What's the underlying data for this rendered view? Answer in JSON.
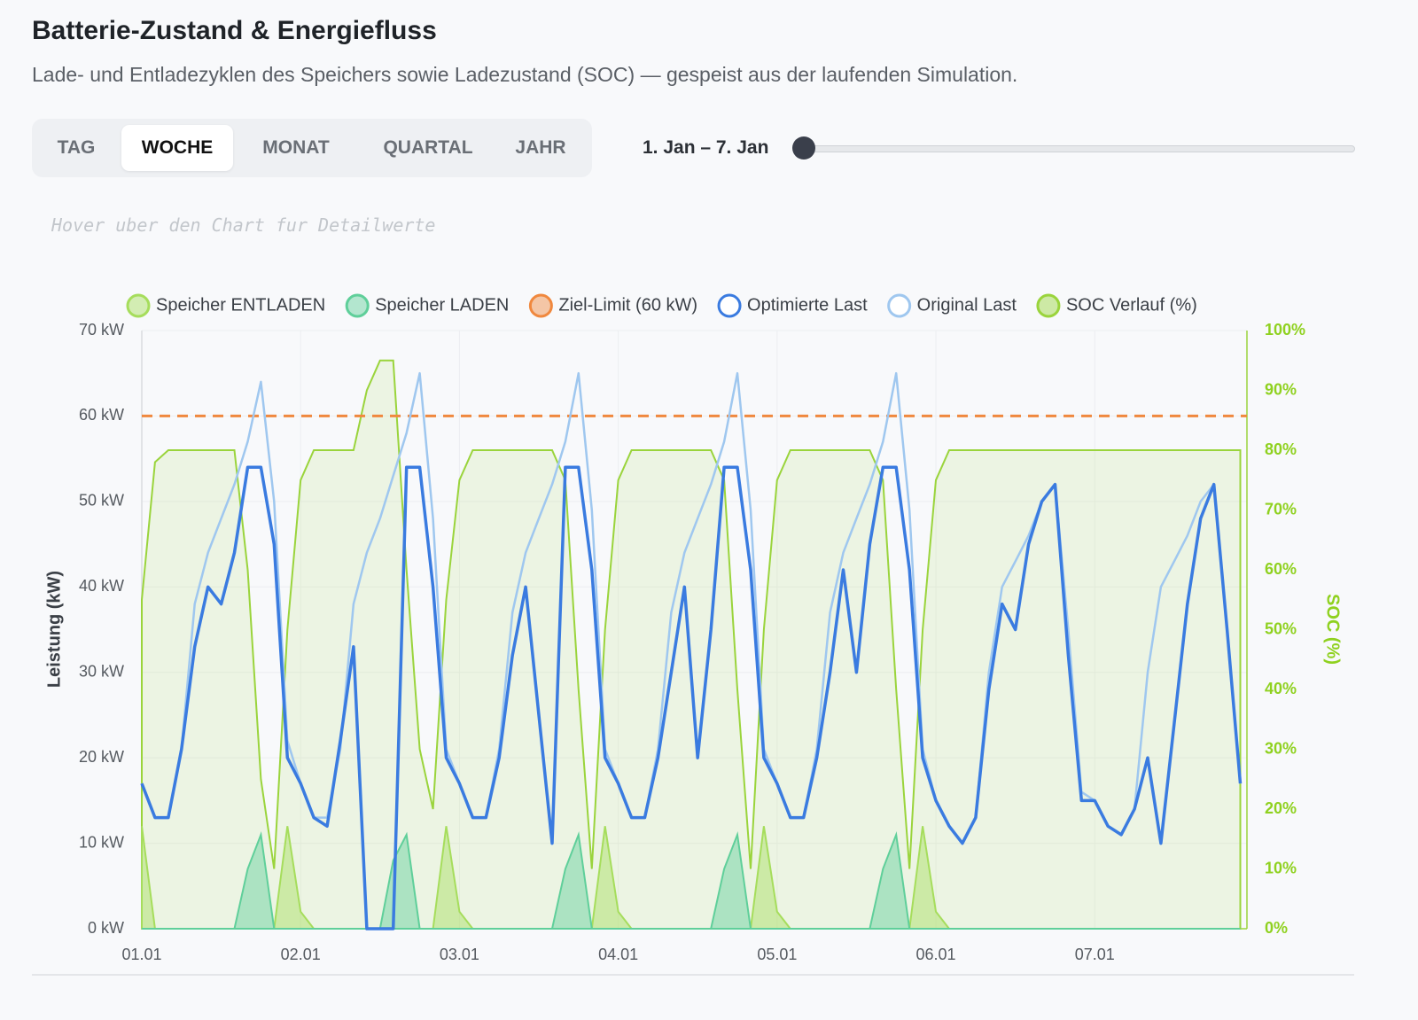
{
  "header": {
    "title": "Batterie-Zustand & Energiefluss",
    "subtitle": "Lade- und Entladezyklen des Speichers sowie Ladezustand (SOC) — gespeist aus der laufenden Simulation.",
    "tabs": [
      "TAG",
      "WOCHE",
      "MONAT",
      "QUARTAL",
      "JAHR"
    ],
    "active_tab": 1,
    "range_label": "1. Jan – 7. Jan",
    "hint": "Hover uber den Chart fur Detailwerte"
  },
  "chart_data": {
    "type": "line",
    "ylabel": "Leistung (kW)",
    "y2label": "SOC (%)",
    "x": [
      0,
      2,
      4,
      6,
      8,
      10,
      12,
      14,
      16,
      18,
      20,
      22,
      24,
      26,
      28,
      30,
      32,
      34,
      36,
      38,
      40,
      42,
      44,
      46,
      48,
      50,
      52,
      54,
      56,
      58,
      60,
      62,
      64,
      66,
      68,
      70,
      72,
      74,
      76,
      78,
      80,
      82,
      84,
      86,
      88,
      90,
      92,
      94,
      96,
      98,
      100,
      102,
      104,
      106,
      108,
      110,
      112,
      114,
      116,
      118,
      120,
      122,
      124,
      126,
      128,
      130,
      132,
      134,
      136,
      138,
      140,
      142,
      144,
      146,
      148,
      150,
      152,
      154,
      156,
      158,
      160,
      162,
      164,
      166
    ],
    "xlim": [
      0,
      167
    ],
    "xticks": [
      {
        "value": 0,
        "label": "01.01"
      },
      {
        "value": 24,
        "label": "02.01"
      },
      {
        "value": 48,
        "label": "03.01"
      },
      {
        "value": 72,
        "label": "04.01"
      },
      {
        "value": 96,
        "label": "05.01"
      },
      {
        "value": 120,
        "label": "06.01"
      },
      {
        "value": 144,
        "label": "07.01"
      }
    ],
    "ylim": [
      0,
      70
    ],
    "yticks": [
      {
        "value": 0,
        "label": "0 kW"
      },
      {
        "value": 10,
        "label": "10 kW"
      },
      {
        "value": 20,
        "label": "20 kW"
      },
      {
        "value": 30,
        "label": "30 kW"
      },
      {
        "value": 40,
        "label": "40 kW"
      },
      {
        "value": 50,
        "label": "50 kW"
      },
      {
        "value": 60,
        "label": "60 kW"
      },
      {
        "value": 70,
        "label": "70 kW"
      }
    ],
    "y2lim": [
      0,
      100
    ],
    "y2ticks": [
      {
        "value": 0,
        "label": "0%"
      },
      {
        "value": 10,
        "label": "10%"
      },
      {
        "value": 20,
        "label": "20%"
      },
      {
        "value": 30,
        "label": "30%"
      },
      {
        "value": 40,
        "label": "40%"
      },
      {
        "value": 50,
        "label": "50%"
      },
      {
        "value": 60,
        "label": "60%"
      },
      {
        "value": 70,
        "label": "70%"
      },
      {
        "value": 80,
        "label": "80%"
      },
      {
        "value": 90,
        "label": "90%"
      },
      {
        "value": 100,
        "label": "100%"
      }
    ],
    "grid": true,
    "series": [
      {
        "name": "Speicher ENTLADEN",
        "kind": "area",
        "color": "#a6dd5c",
        "values": [
          12,
          0,
          0,
          0,
          0,
          0,
          0,
          0,
          0,
          0,
          0,
          12,
          2,
          0,
          0,
          0,
          0,
          0,
          0,
          0,
          0,
          0,
          0,
          12,
          2,
          0,
          0,
          0,
          0,
          0,
          0,
          0,
          0,
          0,
          0,
          12,
          2,
          0,
          0,
          0,
          0,
          0,
          0,
          0,
          0,
          0,
          0,
          12,
          2,
          0,
          0,
          0,
          0,
          0,
          0,
          0,
          0,
          0,
          0,
          12,
          2,
          0,
          0,
          0,
          0,
          0,
          0,
          0,
          0,
          0,
          0,
          0,
          0,
          0,
          0,
          0,
          0,
          0,
          0,
          0,
          0,
          0,
          0,
          0
        ]
      },
      {
        "name": "Speicher LADEN",
        "kind": "area",
        "color": "#5fcf9a",
        "values": [
          0,
          0,
          0,
          0,
          0,
          0,
          0,
          0,
          7,
          11,
          0,
          0,
          0,
          0,
          0,
          0,
          0,
          0,
          0,
          8,
          11,
          0,
          0,
          0,
          0,
          0,
          0,
          0,
          0,
          0,
          0,
          0,
          7,
          11,
          0,
          0,
          0,
          0,
          0,
          0,
          0,
          0,
          0,
          0,
          7,
          11,
          0,
          0,
          0,
          0,
          0,
          0,
          0,
          0,
          0,
          0,
          7,
          11,
          0,
          0,
          0,
          0,
          0,
          0,
          0,
          0,
          0,
          0,
          0,
          0,
          0,
          0,
          0,
          0,
          0,
          0,
          0,
          0,
          0,
          0,
          0,
          0,
          0,
          0
        ]
      },
      {
        "name": "Ziel-Limit (60 kW)",
        "kind": "hline",
        "color": "#f0883e",
        "value": 60
      },
      {
        "name": "Optimierte Last",
        "kind": "line",
        "color": "#3a7be0",
        "values": [
          17,
          13,
          13,
          21,
          33,
          40,
          38,
          44,
          54,
          54,
          45,
          20,
          17,
          13,
          12,
          22,
          33,
          0,
          0,
          0,
          54,
          54,
          40,
          20,
          17,
          13,
          13,
          20,
          32,
          40,
          25,
          10,
          54,
          54,
          42,
          20,
          17,
          13,
          13,
          20,
          30,
          40,
          20,
          35,
          54,
          54,
          42,
          20,
          17,
          13,
          13,
          20,
          30,
          42,
          30,
          45,
          54,
          54,
          42,
          20,
          15,
          12,
          10,
          13,
          28,
          38,
          35,
          45,
          50,
          52,
          32,
          15,
          15,
          12,
          11,
          14,
          20,
          10,
          24,
          38,
          48,
          52,
          35,
          17
        ]
      },
      {
        "name": "Original Last",
        "kind": "line",
        "color": "#9fc7ef",
        "values": [
          17,
          13,
          13,
          21,
          38,
          44,
          48,
          52,
          57,
          64,
          50,
          22,
          17,
          13,
          13,
          21,
          38,
          44,
          48,
          53,
          58,
          65,
          48,
          21,
          17,
          13,
          13,
          21,
          37,
          44,
          48,
          52,
          57,
          65,
          49,
          21,
          17,
          13,
          13,
          21,
          37,
          44,
          48,
          52,
          57,
          65,
          49,
          21,
          17,
          13,
          13,
          21,
          37,
          44,
          48,
          52,
          57,
          65,
          49,
          21,
          15,
          12,
          10,
          13,
          30,
          40,
          43,
          46,
          50,
          52,
          35,
          16,
          15,
          12,
          11,
          14,
          30,
          40,
          43,
          46,
          50,
          52,
          35,
          17
        ]
      },
      {
        "name": "SOC Verlauf (%)",
        "kind": "soc",
        "axis": "y2",
        "color": "#9ad43c",
        "values": [
          55,
          78,
          80,
          80,
          80,
          80,
          80,
          80,
          60,
          25,
          10,
          50,
          75,
          80,
          80,
          80,
          80,
          90,
          95,
          95,
          60,
          30,
          20,
          55,
          75,
          80,
          80,
          80,
          80,
          80,
          80,
          80,
          75,
          40,
          10,
          50,
          75,
          80,
          80,
          80,
          80,
          80,
          80,
          80,
          75,
          40,
          10,
          50,
          75,
          80,
          80,
          80,
          80,
          80,
          80,
          80,
          75,
          40,
          10,
          50,
          75,
          80,
          80,
          80,
          80,
          80,
          80,
          80,
          80,
          80,
          80,
          80,
          80,
          80,
          80,
          80,
          80,
          80,
          80,
          80,
          80,
          80,
          80,
          80
        ]
      }
    ]
  }
}
